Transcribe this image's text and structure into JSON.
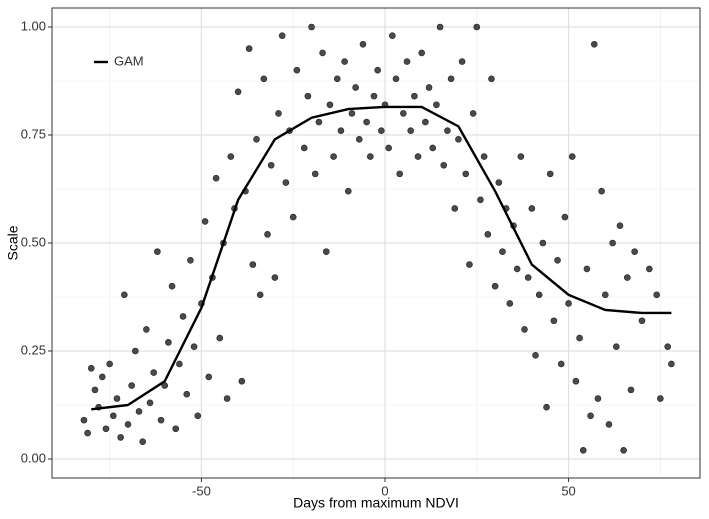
{
  "chart_data": {
    "type": "scatter",
    "xlabel": "Days from maximum NDVI",
    "ylabel": "Scale",
    "xlim": [
      -90.7,
      85.8
    ],
    "ylim": [
      -0.044,
      1.044
    ],
    "xticks": [
      -50,
      0,
      50
    ],
    "yticks": [
      {
        "value": 0,
        "label": "0.00"
      },
      {
        "value": 0.25,
        "label": "0.25"
      },
      {
        "value": 0.5,
        "label": "0.50"
      },
      {
        "value": 0.75,
        "label": "0.75"
      },
      {
        "value": 1,
        "label": "1.00"
      }
    ],
    "x_minor_ticks": [
      -75,
      -25,
      25,
      75
    ],
    "y_minor_ticks": [
      0.125,
      0.375,
      0.625,
      0.875
    ],
    "grid": true,
    "legend": "top-left",
    "points": {
      "color": "#4a4a4a",
      "x": [
        -82,
        -81,
        -80,
        -79,
        -78,
        -77,
        -76,
        -75,
        -74,
        -73,
        -72,
        -71,
        -70,
        -69,
        -68,
        -67,
        -66,
        -65,
        -64,
        -63,
        -62,
        -61,
        -60,
        -59,
        -58,
        -57,
        -56,
        -55,
        -54,
        -53,
        -52,
        -51,
        -50,
        -49,
        -48,
        -47,
        -46,
        -45,
        -44,
        -43,
        -42,
        -41,
        -40,
        -39,
        -38,
        -37,
        -36,
        -35,
        -34,
        -33,
        -32,
        -31,
        -30,
        -29,
        -28,
        -27,
        -26,
        -25,
        -24,
        -22,
        -21,
        -20,
        -19,
        -18,
        -17,
        -16,
        -15,
        -14,
        -13,
        -12,
        -11,
        -10,
        -9,
        -8,
        -7,
        -6,
        -5,
        -4,
        -3,
        -2,
        -1,
        0,
        1,
        2,
        3,
        4,
        5,
        6,
        7,
        8,
        9,
        10,
        11,
        12,
        13,
        14,
        15,
        16,
        17,
        18,
        19,
        20,
        21,
        22,
        23,
        24,
        25,
        26,
        27,
        28,
        29,
        30,
        31,
        32,
        33,
        34,
        35,
        36,
        37,
        38,
        39,
        40,
        41,
        42,
        43,
        44,
        45,
        46,
        47,
        48,
        49,
        50,
        51,
        52,
        53,
        54,
        55,
        56,
        57,
        58,
        59,
        60,
        61,
        62,
        63,
        64,
        65,
        66,
        67,
        68,
        70,
        72,
        74,
        75,
        77,
        78
      ],
      "y": [
        0.09,
        0.06,
        0.21,
        0.16,
        0.12,
        0.19,
        0.07,
        0.22,
        0.1,
        0.14,
        0.05,
        0.38,
        0.08,
        0.17,
        0.25,
        0.11,
        0.04,
        0.3,
        0.13,
        0.2,
        0.48,
        0.09,
        0.17,
        0.27,
        0.4,
        0.07,
        0.22,
        0.33,
        0.15,
        0.46,
        0.26,
        0.1,
        0.36,
        0.55,
        0.19,
        0.42,
        0.65,
        0.28,
        0.5,
        0.14,
        0.7,
        0.58,
        0.85,
        0.18,
        0.62,
        0.95,
        0.45,
        0.74,
        0.38,
        0.88,
        0.52,
        0.68,
        0.42,
        0.8,
        0.98,
        0.64,
        0.76,
        0.56,
        0.9,
        0.72,
        0.84,
        1.0,
        0.66,
        0.78,
        0.94,
        0.48,
        0.82,
        0.7,
        0.88,
        0.76,
        0.92,
        0.62,
        0.8,
        0.86,
        0.74,
        0.96,
        0.78,
        0.7,
        0.84,
        0.9,
        0.76,
        0.82,
        0.72,
        0.98,
        0.88,
        0.66,
        0.8,
        0.92,
        0.76,
        0.84,
        0.7,
        0.94,
        0.78,
        0.86,
        0.72,
        0.82,
        1.0,
        0.68,
        0.76,
        0.88,
        0.58,
        0.74,
        0.92,
        0.66,
        0.45,
        0.8,
        1.0,
        0.6,
        0.7,
        0.52,
        0.88,
        0.4,
        0.64,
        0.48,
        0.58,
        0.36,
        0.54,
        0.44,
        0.7,
        0.3,
        0.42,
        0.58,
        0.24,
        0.38,
        0.5,
        0.12,
        0.66,
        0.32,
        0.46,
        0.22,
        0.56,
        0.36,
        0.7,
        0.18,
        0.28,
        0.02,
        0.44,
        0.1,
        0.96,
        0.14,
        0.62,
        0.38,
        0.08,
        0.5,
        0.26,
        0.54,
        0.02,
        0.42,
        0.16,
        0.48,
        0.32,
        0.44,
        0.38,
        0.14,
        0.26,
        0.22
      ]
    },
    "series": [
      {
        "name": "GAM",
        "color": "#000000",
        "x": [
          -80,
          -70,
          -60,
          -50,
          -40,
          -30,
          -20,
          -10,
          0,
          10,
          20,
          30,
          40,
          50,
          60,
          70,
          78
        ],
        "values": [
          0.115,
          0.125,
          0.18,
          0.35,
          0.6,
          0.74,
          0.79,
          0.81,
          0.815,
          0.815,
          0.77,
          0.62,
          0.45,
          0.38,
          0.345,
          0.338,
          0.338
        ]
      }
    ]
  }
}
